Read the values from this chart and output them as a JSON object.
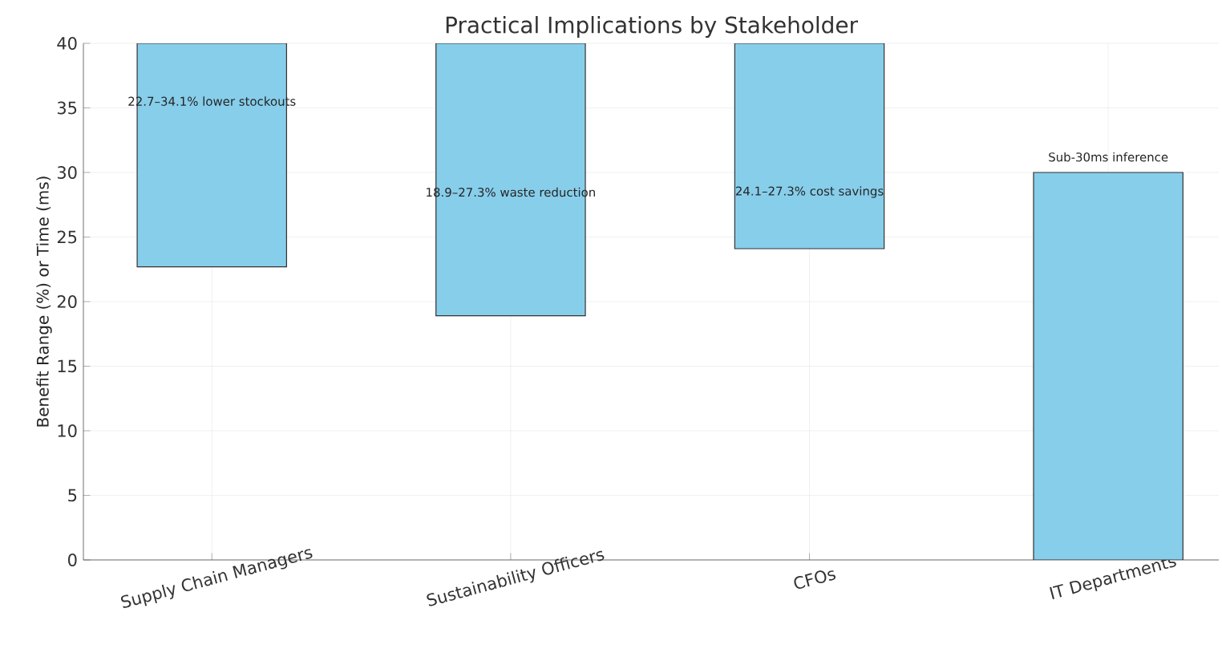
{
  "chart_data": {
    "type": "bar",
    "title": "Practical Implications by Stakeholder",
    "ylabel": "Benefit Range (%) or Time (ms)",
    "categories": [
      "Supply Chain Managers",
      "Sustainability Officers",
      "CFOs",
      "IT Departments"
    ],
    "base": [
      22.7,
      18.9,
      24.1,
      0
    ],
    "values": [
      17.3,
      21.1,
      15.9,
      30
    ],
    "color": "#87ceeb",
    "ylim": [
      0,
      40
    ],
    "yticks": [
      0,
      5,
      10,
      15,
      20,
      25,
      30,
      35,
      40
    ],
    "grid": true,
    "annotations": [
      "22.7–34.1% lower stockouts",
      "18.9–27.3% waste reduction",
      "24.1–27.3% cost savings",
      "Sub-30ms inference"
    ]
  }
}
